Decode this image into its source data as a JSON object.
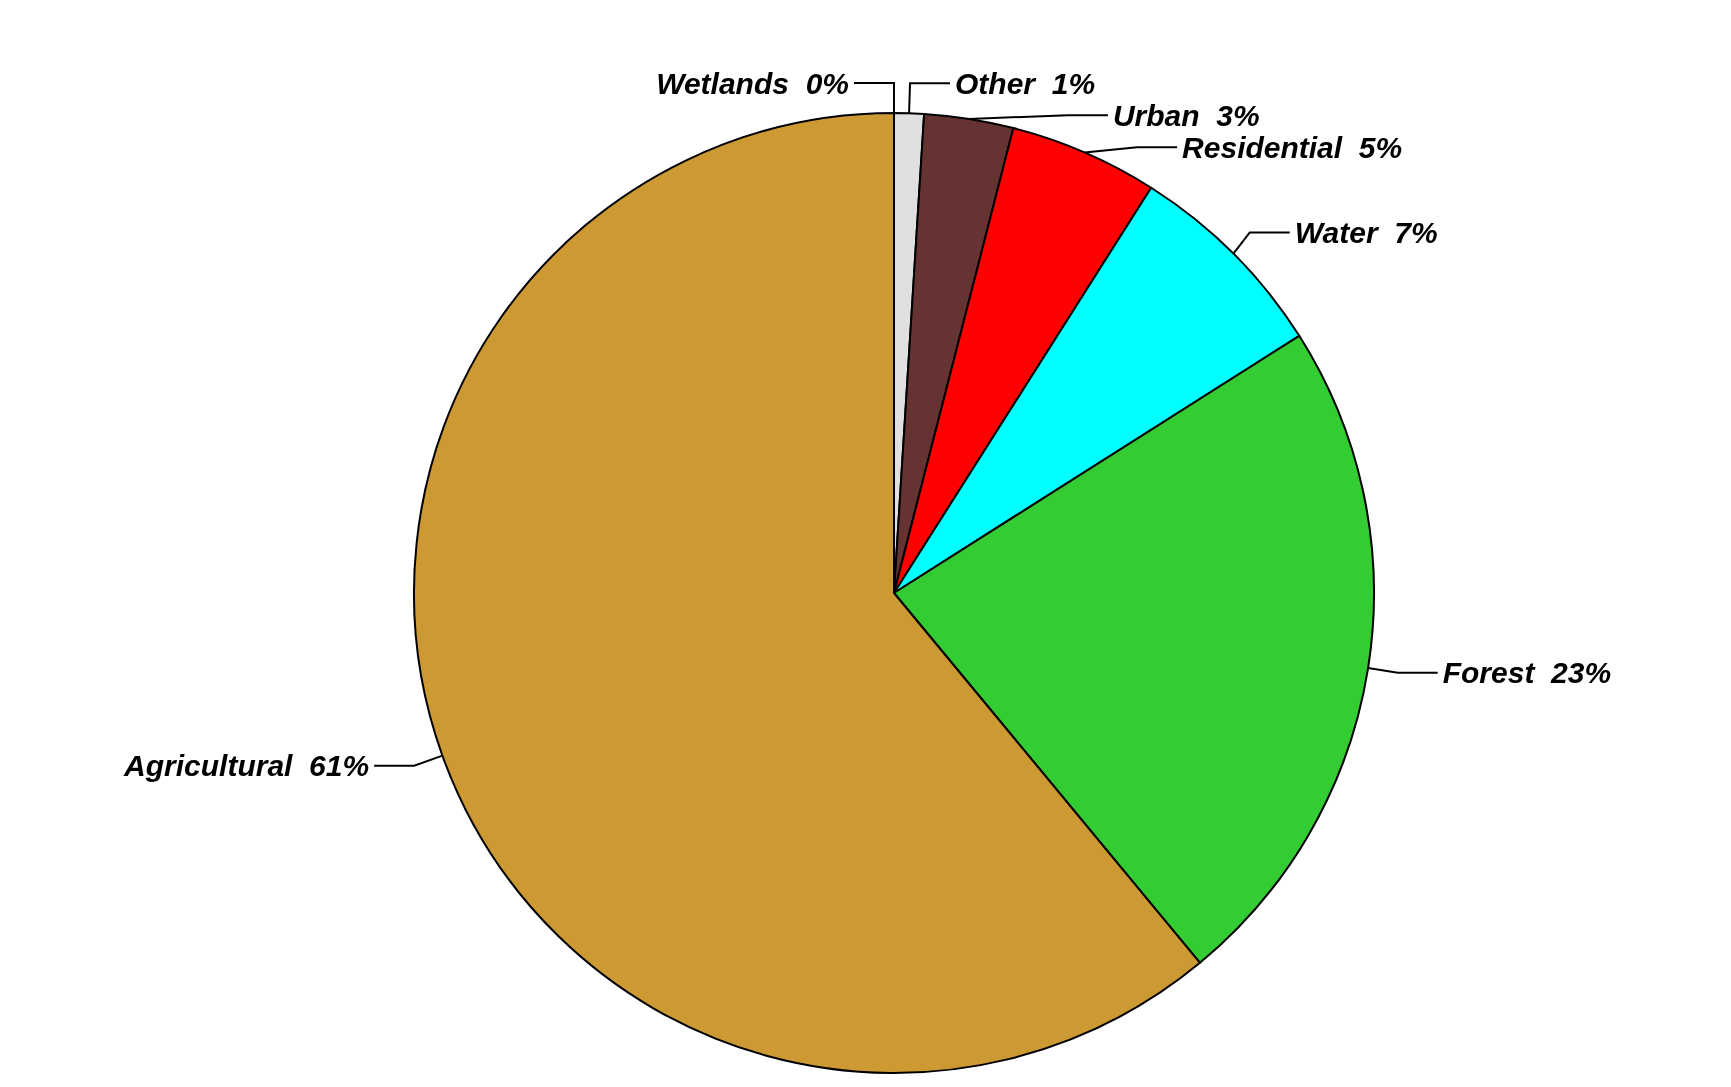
{
  "chart_data": {
    "type": "pie",
    "categories": [
      "Wetlands",
      "Other",
      "Urban",
      "Residential",
      "Water",
      "Forest",
      "Agricultural"
    ],
    "values": [
      0,
      1,
      3,
      5,
      7,
      23,
      61
    ],
    "colors": [
      "#00494d",
      "#e0e0e0",
      "#663333",
      "#ff0000",
      "#00ffff",
      "#33cc33",
      "#cc9933"
    ],
    "value_labels": [
      "0%",
      "1%",
      "3%",
      "5%",
      "7%",
      "23%",
      "61%"
    ]
  }
}
